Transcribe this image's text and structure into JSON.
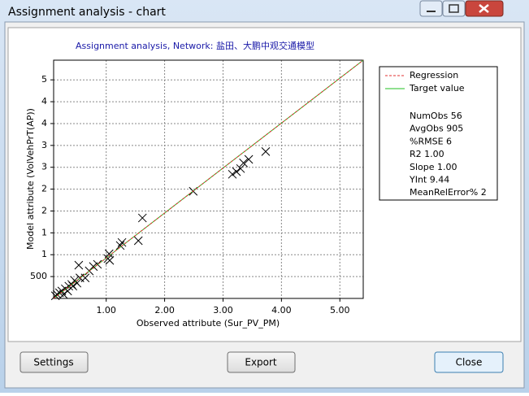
{
  "window": {
    "title": "Assignment analysis - chart",
    "buttons": {
      "settings": "Settings",
      "export": "Export",
      "close": "Close"
    }
  },
  "chart_data": {
    "type": "scatter",
    "title": "Assignment analysis, Network: 盐田、大鹏中观交通模型",
    "x_label": "Observed attribute (Sur_PV_PM)",
    "y_label": "Model attribute (VolVehPrT(AP))",
    "xlim": [
      100,
      5400
    ],
    "ylim": [
      0,
      5450
    ],
    "xticks": [
      {
        "value": 1000,
        "label": "1.00"
      },
      {
        "value": 2000,
        "label": "2.00"
      },
      {
        "value": 3000,
        "label": "3.00"
      },
      {
        "value": 4000,
        "label": "4.00"
      },
      {
        "value": 5000,
        "label": "5.00"
      }
    ],
    "yticks": [
      500,
      {
        "value": 1000,
        "label": "1"
      },
      {
        "value": 1500,
        "label": "1"
      },
      {
        "value": 2000,
        "label": "2"
      },
      {
        "value": 2500,
        "label": "2"
      },
      {
        "value": 3000,
        "label": "3"
      },
      {
        "value": 3500,
        "label": "3"
      },
      {
        "value": 4000,
        "label": "4"
      },
      {
        "value": 4500,
        "label": "4"
      },
      {
        "value": 5000,
        "label": "5"
      }
    ],
    "grid": true,
    "marker_color": "#000000",
    "x": [
      3730,
      3440,
      3350,
      3300,
      3230,
      3160,
      2490,
      1620,
      1550,
      1270,
      1240,
      1050,
      1030,
      1060,
      850,
      780,
      530,
      550,
      460,
      410,
      360,
      300,
      240,
      200,
      160,
      270,
      340,
      430,
      500,
      640,
      710,
      130
    ],
    "y": [
      3360,
      3180,
      3100,
      2970,
      2900,
      2840,
      2450,
      1840,
      1320,
      1280,
      1210,
      1020,
      910,
      870,
      780,
      730,
      760,
      470,
      410,
      320,
      280,
      220,
      170,
      130,
      90,
      90,
      170,
      280,
      350,
      470,
      630,
      60
    ],
    "legend": [
      {
        "name": "Regression",
        "color": "#e03030",
        "dash": true
      },
      {
        "name": "Target value",
        "color": "#20c020",
        "dash": false
      }
    ],
    "stats": [
      "NumObs 56",
      "AvgObs 905",
      "%RMSE 6",
      "R2 1.00",
      "Slope 1.00",
      "YInt 9.44",
      "MeanRelError% 2"
    ]
  }
}
